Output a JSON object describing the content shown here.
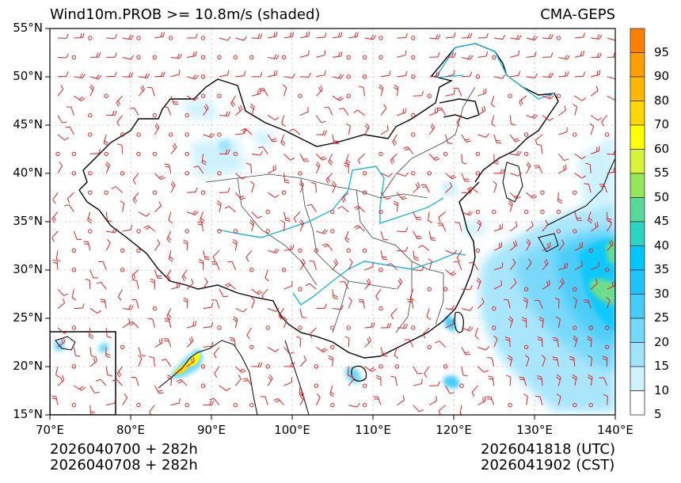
{
  "header": {
    "title_left": "Wind10m.PROB >= 10.8m/s (shaded)",
    "title_right": "CMA-GEPS"
  },
  "axes": {
    "lat_ticks": [
      "55°N",
      "50°N",
      "45°N",
      "40°N",
      "35°N",
      "30°N",
      "25°N",
      "20°N",
      "15°N"
    ],
    "lon_ticks": [
      "70°E",
      "80°E",
      "90°E",
      "100°E",
      "110°E",
      "120°E",
      "130°E",
      "140°E"
    ],
    "lon_range": [
      70,
      140
    ],
    "lat_range": [
      15,
      55
    ]
  },
  "colorbar": {
    "labels": [
      "95",
      "90",
      "80",
      "70",
      "60",
      "55",
      "50",
      "45",
      "40",
      "35",
      "30",
      "25",
      "20",
      "15",
      "10",
      "5"
    ],
    "colors_top_to_bottom": [
      "#ff7f00",
      "#ff9f00",
      "#ffb700",
      "#ffd700",
      "#ffff00",
      "#d8f23c",
      "#96e65a",
      "#5ad79a",
      "#2dd4c0",
      "#00c8ff",
      "#1ec4f8",
      "#46ccf8",
      "#74d8fa",
      "#a0e4fc",
      "#cdf2fe",
      "#ffffff"
    ]
  },
  "footer": {
    "init_time": "2026040700 + 282h",
    "init_time_cst": "2026040708 + 282h",
    "valid_utc": "2026041818 (UTC)",
    "valid_cst": "2026041902 (CST)"
  },
  "styles": {
    "barb_color": "#e02020",
    "river_color": "#1eb4e6",
    "border_color": "#000000",
    "province_color": "#404040",
    "grid_color": "#c8c8c8"
  }
}
